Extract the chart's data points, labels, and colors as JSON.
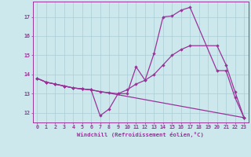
{
  "xlabel": "Windchill (Refroidissement éolien,°C)",
  "xlim": [
    -0.5,
    23.5
  ],
  "ylim": [
    11.5,
    17.8
  ],
  "yticks": [
    12,
    13,
    14,
    15,
    16,
    17
  ],
  "xticks": [
    0,
    1,
    2,
    3,
    4,
    5,
    6,
    7,
    8,
    9,
    10,
    11,
    12,
    13,
    14,
    15,
    16,
    17,
    18,
    19,
    20,
    21,
    22,
    23
  ],
  "bg_color": "#cce8ed",
  "grid_color": "#aacdd4",
  "line_color": "#993399",
  "line1_x": [
    0,
    1,
    2,
    3,
    4,
    5,
    6,
    7,
    8,
    9,
    10,
    11,
    12,
    13,
    14,
    15,
    16,
    17,
    20,
    21,
    22,
    23
  ],
  "line1_y": [
    13.8,
    13.6,
    13.5,
    13.4,
    13.3,
    13.25,
    13.2,
    11.85,
    12.2,
    13.0,
    13.0,
    14.4,
    13.7,
    15.1,
    17.0,
    17.05,
    17.35,
    17.5,
    14.2,
    14.2,
    12.8,
    11.75
  ],
  "line2_x": [
    0,
    1,
    2,
    3,
    4,
    5,
    6,
    23
  ],
  "line2_y": [
    13.8,
    13.6,
    13.5,
    13.4,
    13.3,
    13.25,
    13.2,
    11.75
  ],
  "line3_x": [
    0,
    1,
    2,
    3,
    4,
    5,
    6,
    7,
    8,
    9,
    10,
    11,
    12,
    13,
    14,
    15,
    16,
    17,
    20,
    21,
    22,
    23
  ],
  "line3_y": [
    13.8,
    13.6,
    13.5,
    13.4,
    13.3,
    13.25,
    13.2,
    13.1,
    13.05,
    13.0,
    13.2,
    13.5,
    13.7,
    14.0,
    14.5,
    15.0,
    15.3,
    15.5,
    15.5,
    14.5,
    13.1,
    11.75
  ]
}
